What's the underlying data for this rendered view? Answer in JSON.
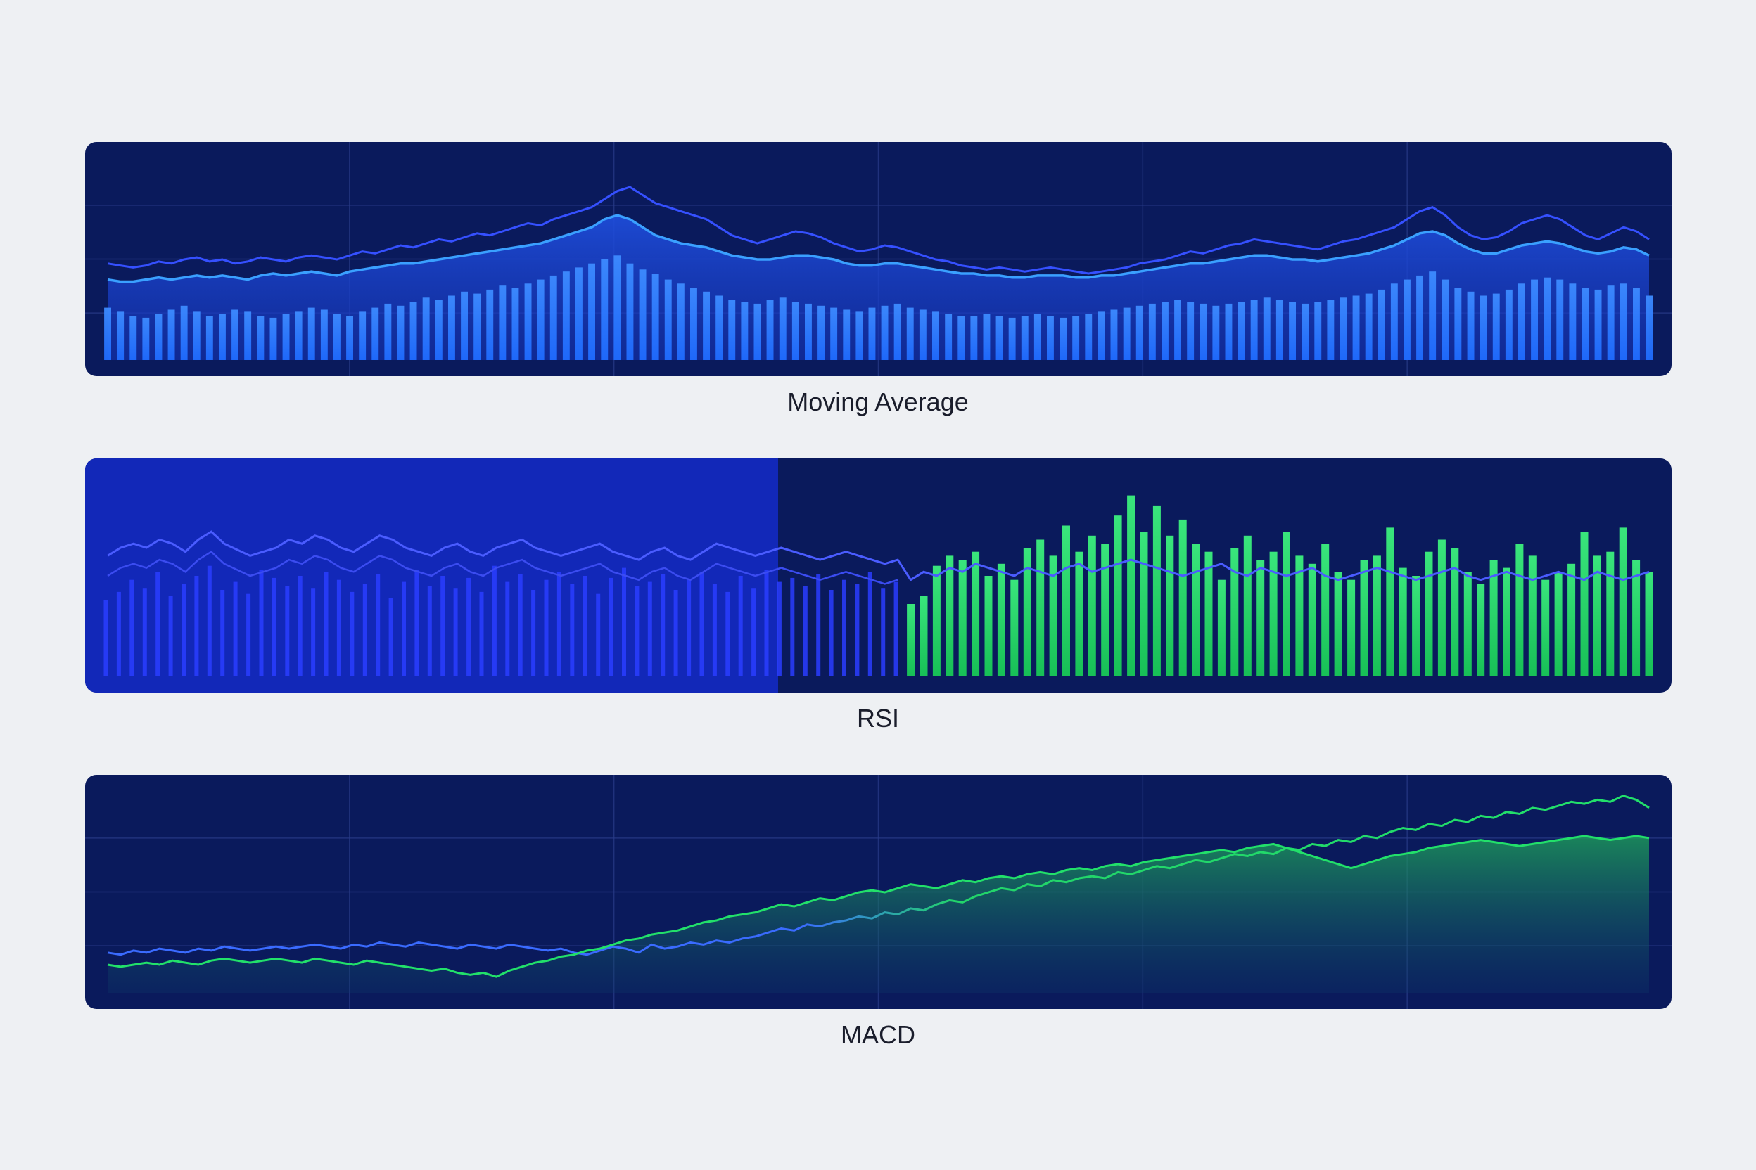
{
  "captions": {
    "moving_average": "Moving Average",
    "rsi": "RSI",
    "macd": "MACD"
  },
  "colors": {
    "page_bg": "#eef0f3",
    "panel_bg": "#0a1a5c",
    "blue_line": "#3a5cff",
    "blue_bar": "#1f6bff",
    "green": "#22e06a",
    "grid": "#2a3d8a"
  },
  "chart_data": [
    {
      "type": "line",
      "caption": "Moving Average",
      "x_range": [
        0,
        120
      ],
      "ylim": [
        0,
        100
      ],
      "grid": true,
      "series": [
        {
          "values": [
            48,
            47,
            46,
            47,
            49,
            48,
            50,
            51,
            49,
            50,
            48,
            49,
            51,
            50,
            49,
            51,
            52,
            51,
            50,
            52,
            54,
            53,
            55,
            57,
            56,
            58,
            60,
            59,
            61,
            63,
            62,
            64,
            66,
            68,
            67,
            70,
            72,
            74,
            76,
            80,
            84,
            86,
            82,
            78,
            76,
            74,
            72,
            70,
            66,
            62,
            60,
            58,
            60,
            62,
            64,
            63,
            61,
            58,
            56,
            54,
            55,
            57,
            56,
            54,
            52,
            50,
            49,
            47,
            46,
            45,
            46,
            45,
            44,
            45,
            46,
            45,
            44,
            43,
            44,
            45,
            46,
            48,
            49,
            50,
            52,
            54,
            53,
            55,
            57,
            58,
            60,
            59,
            58,
            57,
            56,
            55,
            57,
            59,
            60,
            62,
            64,
            66,
            70,
            74,
            76,
            72,
            66,
            62,
            60,
            61,
            64,
            68,
            70,
            72,
            70,
            66,
            62,
            60,
            63,
            66,
            64,
            60
          ]
        },
        {
          "values": [
            40,
            39,
            39,
            40,
            41,
            40,
            41,
            42,
            41,
            42,
            41,
            40,
            42,
            43,
            42,
            43,
            44,
            43,
            42,
            44,
            45,
            46,
            47,
            48,
            48,
            49,
            50,
            51,
            52,
            53,
            54,
            55,
            56,
            57,
            58,
            60,
            62,
            64,
            66,
            70,
            72,
            70,
            66,
            62,
            60,
            58,
            57,
            56,
            54,
            52,
            51,
            50,
            50,
            51,
            52,
            52,
            51,
            50,
            48,
            47,
            47,
            48,
            48,
            47,
            46,
            45,
            44,
            43,
            43,
            42,
            42,
            41,
            41,
            42,
            42,
            42,
            41,
            41,
            42,
            42,
            43,
            44,
            45,
            46,
            47,
            48,
            48,
            49,
            50,
            51,
            52,
            52,
            51,
            50,
            50,
            49,
            50,
            51,
            52,
            53,
            55,
            57,
            60,
            63,
            64,
            62,
            58,
            55,
            53,
            53,
            55,
            57,
            58,
            59,
            58,
            56,
            54,
            53,
            54,
            56,
            55,
            52
          ]
        },
        {
          "name": "bars",
          "values": [
            26,
            24,
            22,
            21,
            23,
            25,
            27,
            24,
            22,
            23,
            25,
            24,
            22,
            21,
            23,
            24,
            26,
            25,
            23,
            22,
            24,
            26,
            28,
            27,
            29,
            31,
            30,
            32,
            34,
            33,
            35,
            37,
            36,
            38,
            40,
            42,
            44,
            46,
            48,
            50,
            52,
            48,
            45,
            43,
            40,
            38,
            36,
            34,
            32,
            30,
            29,
            28,
            30,
            31,
            29,
            28,
            27,
            26,
            25,
            24,
            26,
            27,
            28,
            26,
            25,
            24,
            23,
            22,
            22,
            23,
            22,
            21,
            22,
            23,
            22,
            21,
            22,
            23,
            24,
            25,
            26,
            27,
            28,
            29,
            30,
            29,
            28,
            27,
            28,
            29,
            30,
            31,
            30,
            29,
            28,
            29,
            30,
            31,
            32,
            33,
            35,
            38,
            40,
            42,
            44,
            40,
            36,
            34,
            32,
            33,
            35,
            38,
            40,
            41,
            40,
            38,
            36,
            35,
            37,
            38,
            36,
            32
          ]
        }
      ]
    },
    {
      "type": "bar",
      "caption": "RSI",
      "x_range": [
        0,
        120
      ],
      "ylim": [
        0,
        100
      ],
      "grid": false,
      "series": [
        {
          "name": "bars",
          "values": [
            38,
            42,
            48,
            44,
            52,
            40,
            46,
            50,
            55,
            43,
            47,
            41,
            53,
            49,
            45,
            50,
            44,
            52,
            48,
            42,
            46,
            51,
            39,
            47,
            53,
            45,
            50,
            44,
            49,
            42,
            55,
            47,
            51,
            43,
            48,
            52,
            46,
            50,
            41,
            49,
            54,
            45,
            47,
            51,
            43,
            48,
            52,
            46,
            42,
            50,
            44,
            53,
            47,
            49,
            45,
            51,
            43,
            48,
            46,
            52,
            44,
            47,
            36,
            40,
            55,
            60,
            58,
            62,
            50,
            56,
            48,
            64,
            68,
            60,
            75,
            62,
            70,
            66,
            80,
            90,
            72,
            85,
            70,
            78,
            66,
            62,
            48,
            64,
            70,
            58,
            62,
            72,
            60,
            56,
            66,
            52,
            48,
            58,
            60,
            74,
            54,
            50,
            62,
            68,
            64,
            52,
            46,
            58,
            54,
            66,
            60,
            48,
            52,
            56,
            72,
            60,
            62,
            74,
            58,
            52
          ]
        },
        {
          "values": [
            60,
            64,
            66,
            64,
            68,
            66,
            62,
            68,
            72,
            66,
            63,
            60,
            62,
            64,
            68,
            66,
            70,
            68,
            64,
            62,
            66,
            70,
            68,
            64,
            62,
            60,
            64,
            66,
            62,
            60,
            64,
            66,
            68,
            64,
            62,
            60,
            62,
            64,
            66,
            62,
            60,
            58,
            62,
            64,
            60,
            58,
            62,
            66,
            64,
            62,
            60,
            62,
            64,
            62,
            60,
            58,
            60,
            62,
            60,
            58,
            56,
            58,
            48,
            52,
            50,
            54,
            52,
            56,
            54,
            52,
            50,
            54,
            52,
            50,
            54,
            56,
            52,
            54,
            56,
            58,
            56,
            54,
            52,
            50,
            52,
            54,
            56,
            52,
            50,
            54,
            52,
            50,
            52,
            54,
            50,
            48,
            50,
            52,
            54,
            52,
            50,
            48,
            50,
            52,
            54,
            50,
            48,
            50,
            52,
            50,
            48,
            50,
            52,
            50,
            48,
            52,
            50,
            48,
            50,
            52
          ]
        }
      ]
    },
    {
      "type": "area",
      "caption": "MACD",
      "x_range": [
        0,
        120
      ],
      "ylim": [
        0,
        100
      ],
      "grid": true,
      "series": [
        {
          "values": [
            20,
            19,
            21,
            20,
            22,
            21,
            20,
            22,
            21,
            23,
            22,
            21,
            22,
            23,
            22,
            23,
            24,
            23,
            22,
            24,
            23,
            25,
            24,
            23,
            25,
            24,
            23,
            22,
            24,
            23,
            22,
            24,
            23,
            22,
            21,
            22,
            20,
            19,
            21,
            23,
            22,
            20,
            24,
            22,
            23,
            25,
            24,
            26,
            25,
            27,
            28,
            30,
            32,
            31,
            34,
            33,
            35,
            36,
            38,
            37,
            40,
            39,
            42,
            41,
            44,
            46,
            45,
            48,
            50,
            52,
            51,
            54,
            53,
            56,
            55,
            57,
            58,
            57,
            60,
            59,
            61,
            63,
            62,
            64,
            66,
            65,
            67,
            69,
            68,
            70,
            69,
            72,
            71,
            74,
            73,
            76,
            75,
            78,
            77,
            80,
            82,
            81,
            84,
            83,
            86,
            85,
            88,
            87,
            90,
            89,
            92,
            91,
            93,
            95,
            94,
            96,
            95,
            98,
            96,
            92
          ]
        },
        {
          "values": [
            14,
            13,
            14,
            15,
            14,
            16,
            15,
            14,
            16,
            17,
            16,
            15,
            16,
            17,
            16,
            15,
            17,
            16,
            15,
            14,
            16,
            15,
            14,
            13,
            12,
            11,
            12,
            10,
            9,
            10,
            8,
            11,
            13,
            15,
            16,
            18,
            19,
            21,
            22,
            24,
            26,
            27,
            29,
            30,
            31,
            33,
            35,
            36,
            38,
            39,
            40,
            42,
            44,
            43,
            45,
            47,
            46,
            48,
            50,
            51,
            50,
            52,
            54,
            53,
            52,
            54,
            56,
            55,
            57,
            58,
            57,
            59,
            60,
            59,
            61,
            62,
            61,
            63,
            64,
            63,
            65,
            66,
            67,
            68,
            69,
            70,
            71,
            70,
            72,
            73,
            74,
            72,
            70,
            68,
            66,
            64,
            62,
            64,
            66,
            68,
            69,
            70,
            72,
            73,
            74,
            75,
            76,
            75,
            74,
            73,
            74,
            75,
            76,
            77,
            78,
            77,
            76,
            77,
            78,
            77
          ]
        }
      ]
    }
  ]
}
